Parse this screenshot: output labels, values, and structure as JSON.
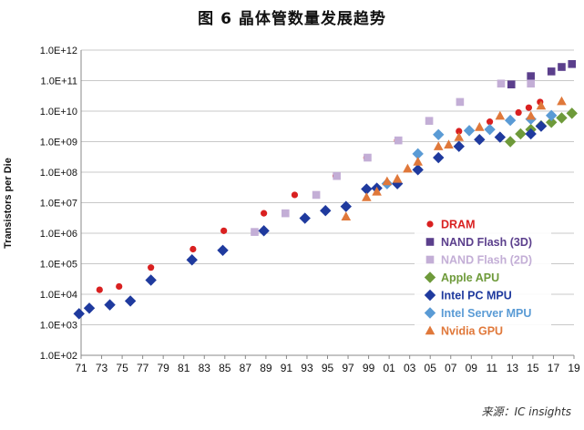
{
  "title": "图 6 晶体管数量发展趋势",
  "source": "来源：IC insights",
  "chart_data": {
    "type": "scatter",
    "title": "图 6 晶体管数量发展趋势",
    "xlabel": "",
    "ylabel": "Transistors per Die",
    "yscale": "log",
    "xlim": [
      1971,
      2019
    ],
    "ylim": [
      100,
      1000000000000
    ],
    "xtick_labels": [
      "71",
      "73",
      "75",
      "77",
      "79",
      "81",
      "83",
      "85",
      "87",
      "89",
      "91",
      "93",
      "95",
      "97",
      "99",
      "01",
      "03",
      "05",
      "07",
      "09",
      "11",
      "13",
      "15",
      "17",
      "19"
    ],
    "ytick_labels": [
      "1.0E+02",
      "1.0E+03",
      "1.0E+04",
      "1.0E+05",
      "1.0E+06",
      "1.0E+07",
      "1.0E+08",
      "1.0E+09",
      "1.0E+10",
      "1.0E+11",
      "1.0E+12"
    ],
    "grid": "horizontal",
    "legend_position": "right",
    "series": [
      {
        "name": "DRAM",
        "marker": "circle",
        "color": "#d92020",
        "points": [
          [
            1972.8,
            14000
          ],
          [
            1974.7,
            18000
          ],
          [
            1977.8,
            75000
          ],
          [
            1981.9,
            300000
          ],
          [
            1984.9,
            1200000
          ],
          [
            1988.8,
            4500000
          ],
          [
            1991.8,
            18000000
          ],
          [
            1995.8,
            75000000
          ],
          [
            1998.8,
            300000000
          ],
          [
            2001.8,
            1100000000
          ],
          [
            2007.8,
            2200000000
          ],
          [
            2010.8,
            4500000000
          ],
          [
            2013.6,
            9000000000
          ],
          [
            2014.6,
            13000000000
          ],
          [
            2015.7,
            20000000000
          ]
        ]
      },
      {
        "name": "NAND Flash (3D)",
        "marker": "square",
        "color": "#5b3f8c",
        "points": [
          [
            2012.9,
            75000000000
          ],
          [
            2014.8,
            140000000000
          ],
          [
            2016.8,
            200000000000
          ],
          [
            2017.8,
            280000000000
          ],
          [
            2018.8,
            350000000000
          ]
        ]
      },
      {
        "name": "NAND Flash (2D)",
        "marker": "square",
        "color": "#c3aed6",
        "points": [
          [
            1987.9,
            1100000
          ],
          [
            1990.9,
            4500000
          ],
          [
            1993.9,
            18000000
          ],
          [
            1995.9,
            75000000
          ],
          [
            1998.9,
            300000000
          ],
          [
            2001.9,
            1100000000
          ],
          [
            2004.9,
            4800000000
          ],
          [
            2007.9,
            20000000000
          ],
          [
            2011.9,
            80000000000
          ],
          [
            2014.8,
            80000000000
          ]
        ]
      },
      {
        "name": "Apple APU",
        "marker": "diamond",
        "color": "#6e9a3a",
        "points": [
          [
            2012.8,
            1000000000
          ],
          [
            2013.8,
            1800000000
          ],
          [
            2014.8,
            2500000000
          ],
          [
            2015.8,
            3300000000
          ],
          [
            2016.8,
            4300000000
          ],
          [
            2017.8,
            6000000000
          ],
          [
            2018.8,
            8500000000
          ]
        ]
      },
      {
        "name": "Intel PC MPU",
        "marker": "diamond",
        "color": "#1f3a9e",
        "points": [
          [
            1970.8,
            2300
          ],
          [
            1971.8,
            3500
          ],
          [
            1973.8,
            4500
          ],
          [
            1975.8,
            6000
          ],
          [
            1977.8,
            29000
          ],
          [
            1981.8,
            134000
          ],
          [
            1984.8,
            275000
          ],
          [
            1988.8,
            1200000
          ],
          [
            1992.8,
            3100000
          ],
          [
            1994.8,
            5500000
          ],
          [
            1996.8,
            7500000
          ],
          [
            1998.8,
            28000000
          ],
          [
            1999.8,
            30000000
          ],
          [
            2001.8,
            42000000
          ],
          [
            2003.8,
            120000000
          ],
          [
            2005.8,
            300000000
          ],
          [
            2007.8,
            700000000
          ],
          [
            2009.8,
            1170000000
          ],
          [
            2011.8,
            1400000000
          ],
          [
            2014.8,
            1800000000
          ],
          [
            2015.8,
            3200000000
          ]
        ]
      },
      {
        "name": "Intel Server MPU",
        "marker": "diamond",
        "color": "#5a9bd5",
        "points": [
          [
            2000.8,
            42000000
          ],
          [
            2003.8,
            400000000
          ],
          [
            2005.8,
            1700000000
          ],
          [
            2008.8,
            2300000000
          ],
          [
            2010.8,
            2500000000
          ],
          [
            2012.8,
            5000000000
          ],
          [
            2014.8,
            5500000000
          ],
          [
            2016.8,
            7200000000
          ]
        ]
      },
      {
        "name": "Nvidia GPU",
        "marker": "triangle",
        "color": "#e0783a",
        "points": [
          [
            1996.8,
            3500000
          ],
          [
            1998.8,
            15000000
          ],
          [
            1999.8,
            23000000
          ],
          [
            2000.8,
            50000000
          ],
          [
            2001.8,
            60000000
          ],
          [
            2002.8,
            130000000
          ],
          [
            2003.8,
            220000000
          ],
          [
            2005.8,
            700000000
          ],
          [
            2006.8,
            800000000
          ],
          [
            2007.8,
            1400000000
          ],
          [
            2009.8,
            3000000000
          ],
          [
            2011.8,
            7000000000
          ],
          [
            2014.8,
            7000000000
          ],
          [
            2015.8,
            15000000000
          ],
          [
            2017.8,
            21000000000
          ]
        ]
      }
    ]
  }
}
